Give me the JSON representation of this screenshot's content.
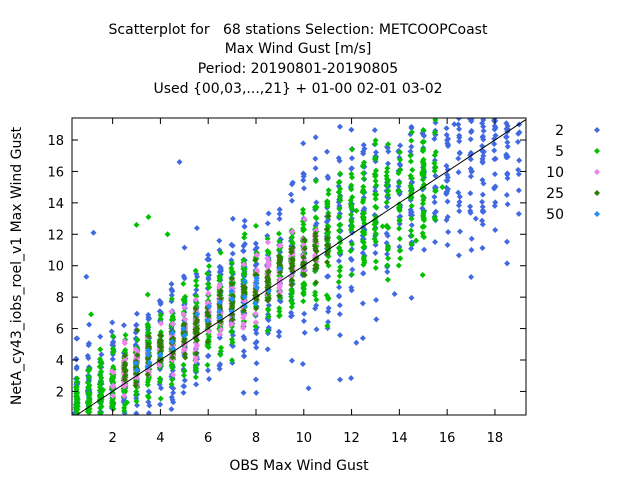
{
  "chart_data": {
    "type": "scatter",
    "title_lines": [
      "Scatterplot for   68 stations Selection: METCOOPCoast",
      "Max Wind Gust [m/s]",
      "Period: 20190801-20190805",
      "Used {00,03,...,21} + 01-00 02-01 03-02"
    ],
    "xlabel": "OBS Max Wind Gust",
    "ylabel": "NetA_cy43_iobs_roel_v1 Max Wind Gust",
    "xlim": [
      0.3,
      19.3
    ],
    "ylim": [
      0.5,
      19.4
    ],
    "xticks": [
      2,
      4,
      6,
      8,
      10,
      12,
      14,
      16,
      18
    ],
    "yticks": [
      2,
      4,
      6,
      8,
      10,
      12,
      14,
      16,
      18
    ],
    "diagonal": true,
    "grid": false,
    "legend_position": "right",
    "series": [
      {
        "name": "2",
        "color": "#4169e1",
        "cloud": {
          "x_range": [
            0.4,
            19.0
          ],
          "spread": 2.4,
          "count": 1100
        },
        "points": [
          [
            19.0,
            13.3
          ],
          [
            18.5,
            14.5
          ],
          [
            16.3,
            19.0
          ],
          [
            16.5,
            18.7
          ],
          [
            17.0,
            18.5
          ],
          [
            15.0,
            17.5
          ],
          [
            4.8,
            16.6
          ],
          [
            1.2,
            12.1
          ],
          [
            0.9,
            9.3
          ],
          [
            0.4,
            0.6
          ],
          [
            10.2,
            2.2
          ],
          [
            12.2,
            5.1
          ],
          [
            13.8,
            8.2
          ],
          [
            17.2,
            13.0
          ],
          [
            2.0,
            1.0
          ]
        ]
      },
      {
        "name": "5",
        "color": "#00c000",
        "cloud": {
          "x_range": [
            0.5,
            15.5
          ],
          "spread": 1.6,
          "count": 900
        },
        "points": [
          [
            3.0,
            12.6
          ],
          [
            3.5,
            13.1
          ],
          [
            4.3,
            12.0
          ],
          [
            12.2,
            13.5
          ],
          [
            13.3,
            12.5
          ],
          [
            14.7,
            11.6
          ],
          [
            15.8,
            15.0
          ],
          [
            15.0,
            13.2
          ],
          [
            1.1,
            6.9
          ],
          [
            1.6,
            2.1
          ],
          [
            2.6,
            1.3
          ]
        ]
      },
      {
        "name": "10",
        "color": "#ee82ee",
        "cloud": {
          "x_range": [
            2.2,
            10.5
          ],
          "spread": 0.9,
          "count": 350
        },
        "points": []
      },
      {
        "name": "25",
        "color": "#2e7d00",
        "cloud": {
          "x_range": [
            2.5,
            11.0
          ],
          "spread": 0.7,
          "count": 250
        },
        "points": []
      },
      {
        "name": "50",
        "color": "#1e90ff",
        "cloud": {
          "x_range": [
            3.0,
            9.0
          ],
          "spread": 0.5,
          "count": 30
        },
        "points": []
      }
    ]
  }
}
